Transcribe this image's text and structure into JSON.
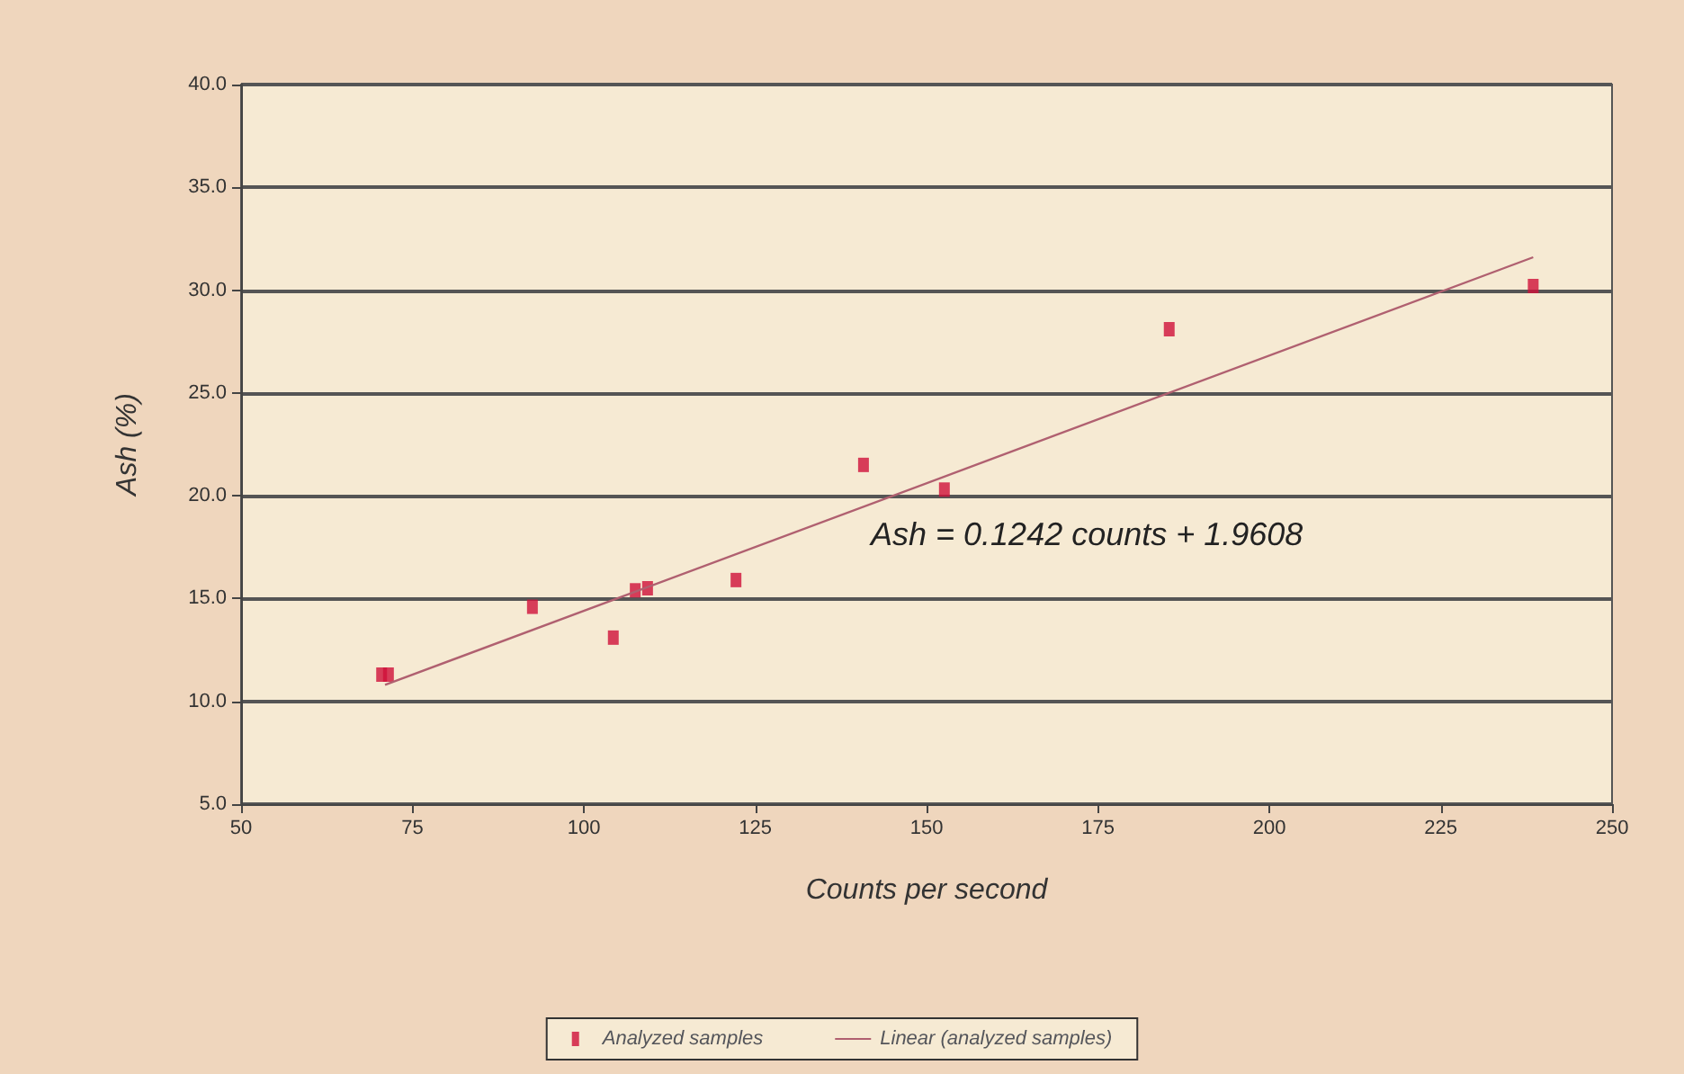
{
  "chart_data": {
    "type": "scatter",
    "xlabel": "Counts per second",
    "ylabel": "Ash (%)",
    "annotations": [
      "Ash = 0.1242 counts + 1.9608"
    ],
    "series": [
      {
        "name": "Analyzed samples",
        "color": "#d0103a",
        "marker": "square",
        "x": [
          70.5,
          71.5,
          92.5,
          104.3,
          107.5,
          109.3,
          122.2,
          140.8,
          152.6,
          185.4,
          238.5
        ],
        "values": [
          11.3,
          11.3,
          14.6,
          13.1,
          15.4,
          15.5,
          15.9,
          21.5,
          20.3,
          28.1,
          30.2
        ]
      },
      {
        "name": "Linear (analyzed samples)",
        "type": "line",
        "color": "#b06070",
        "marker": "none",
        "x": [
          71,
          238.5
        ],
        "values": [
          10.8,
          31.6
        ]
      }
    ],
    "xlim": [
      50,
      250
    ],
    "xticks": [
      50,
      75,
      100,
      125,
      150,
      175,
      200,
      225,
      250
    ],
    "ylim": [
      5,
      40
    ],
    "yticks": [
      {
        "value": 5,
        "label": "5.0"
      },
      {
        "value": 10,
        "label": "10.0"
      },
      {
        "value": 15,
        "label": "15.0"
      },
      {
        "value": 20,
        "label": "20.0"
      },
      {
        "value": 25,
        "label": "25.0"
      },
      {
        "value": 30,
        "label": "30.0"
      },
      {
        "value": 35,
        "label": "35.0"
      },
      {
        "value": 40,
        "label": "40.0"
      }
    ],
    "grid": "y",
    "legend": "bottom"
  }
}
